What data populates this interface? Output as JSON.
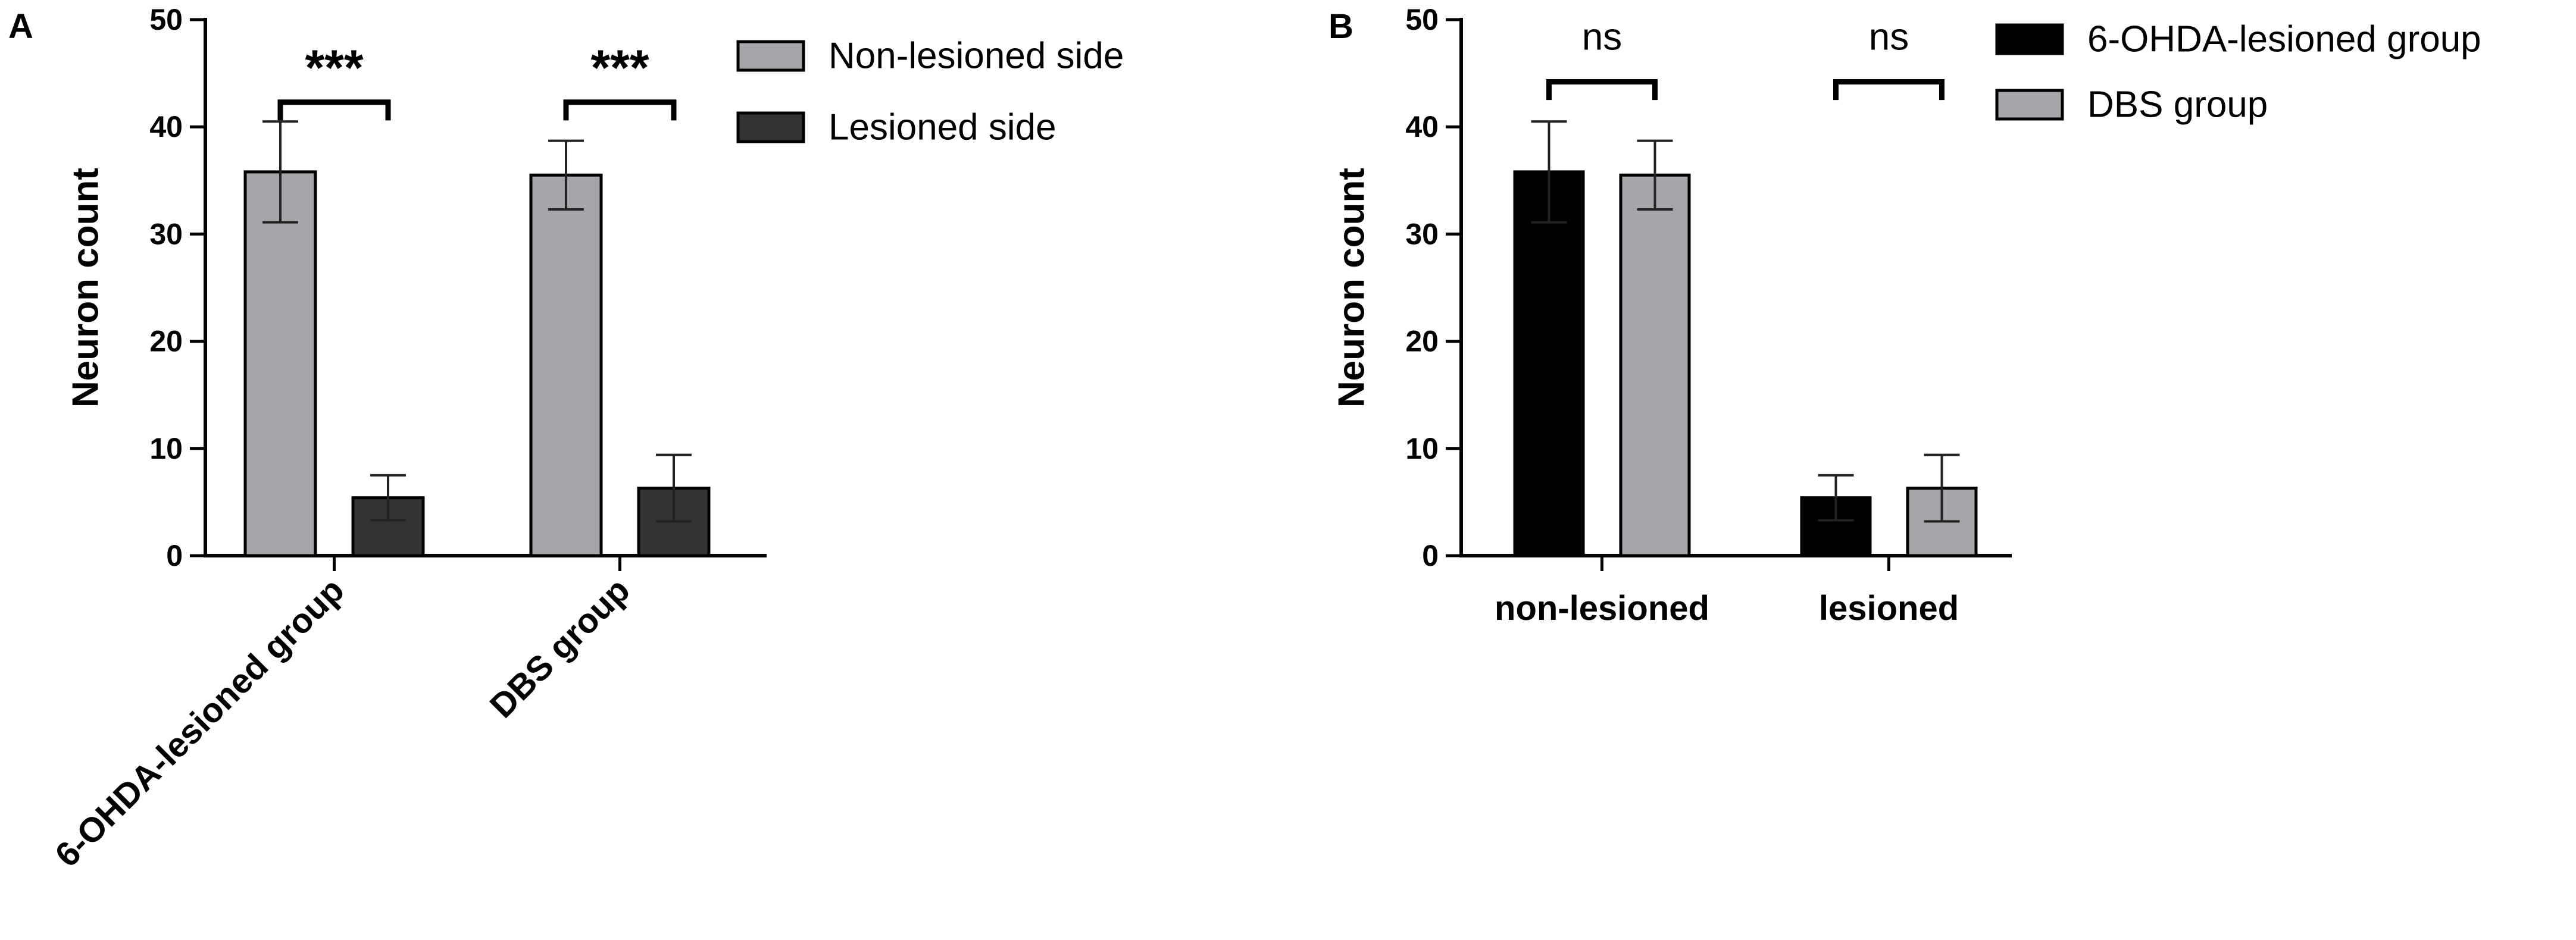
{
  "chart_data": [
    {
      "panel": "A",
      "type": "bar",
      "ylabel": "Neuron count",
      "xlabel": "",
      "ylim": [
        0,
        50
      ],
      "yticks": [
        0,
        10,
        20,
        30,
        40,
        50
      ],
      "categories": [
        "6-OHDA-lesioned group",
        "DBS group"
      ],
      "tick_rotation": -45,
      "series": [
        {
          "name": "Non-lesioned side",
          "color": "#a6a6aa",
          "values": [
            35.8,
            35.5
          ],
          "errors": [
            4.7,
            3.2
          ]
        },
        {
          "name": "Lesioned side",
          "color": "#333333",
          "values": [
            5.4,
            6.3
          ],
          "errors": [
            2.1,
            3.1
          ]
        }
      ],
      "annotations": [
        {
          "category_index": 0,
          "text": "***"
        },
        {
          "category_index": 1,
          "text": "***"
        }
      ],
      "legend_position": "top-right",
      "grid": false
    },
    {
      "panel": "B",
      "type": "bar",
      "ylabel": "Neuron count",
      "xlabel": "",
      "ylim": [
        0,
        50
      ],
      "yticks": [
        0,
        10,
        20,
        30,
        40,
        50
      ],
      "categories": [
        "non-lesioned",
        "lesioned"
      ],
      "tick_rotation": 0,
      "series": [
        {
          "name": "6-OHDA-lesioned group",
          "color": "#000000",
          "values": [
            35.8,
            5.4
          ],
          "errors": [
            4.7,
            2.1
          ]
        },
        {
          "name": "DBS group",
          "color": "#a6a6aa",
          "values": [
            35.5,
            6.3
          ],
          "errors": [
            3.2,
            3.1
          ]
        }
      ],
      "annotations": [
        {
          "category_index": 0,
          "text": "ns"
        },
        {
          "category_index": 1,
          "text": "ns"
        }
      ],
      "legend_position": "top-right",
      "grid": false
    }
  ]
}
